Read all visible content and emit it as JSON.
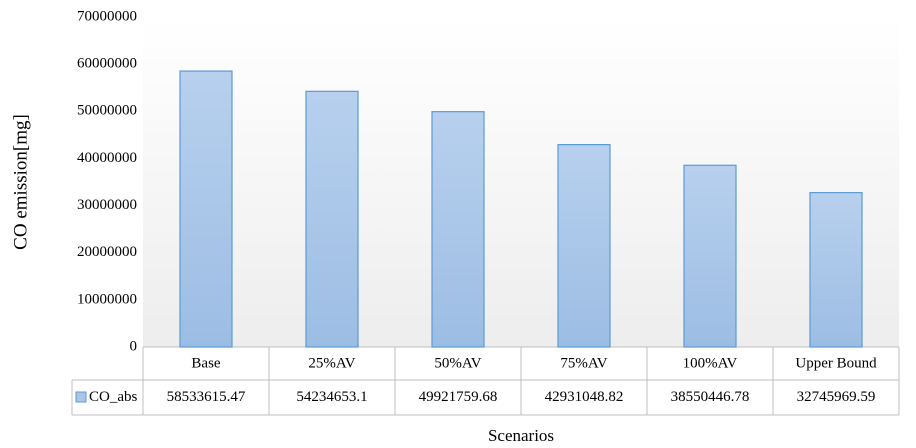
{
  "chart_data": {
    "type": "bar",
    "x_label": "Scenarios",
    "y_label": "CO emission[mg]",
    "categories": [
      "Base",
      "25%AV",
      "50%AV",
      "75%AV",
      "100%AV",
      "Upper Bound"
    ],
    "series": [
      {
        "name": "CO_abs",
        "color": "#a9c6e8",
        "values": [
          58533615.47,
          54234653.1,
          49921759.68,
          42931048.82,
          38550446.78,
          32745969.59
        ]
      }
    ],
    "ylim": [
      0,
      70000000
    ],
    "yticks": [
      0,
      10000000,
      20000000,
      30000000,
      40000000,
      50000000,
      60000000,
      70000000
    ],
    "grid": false
  }
}
